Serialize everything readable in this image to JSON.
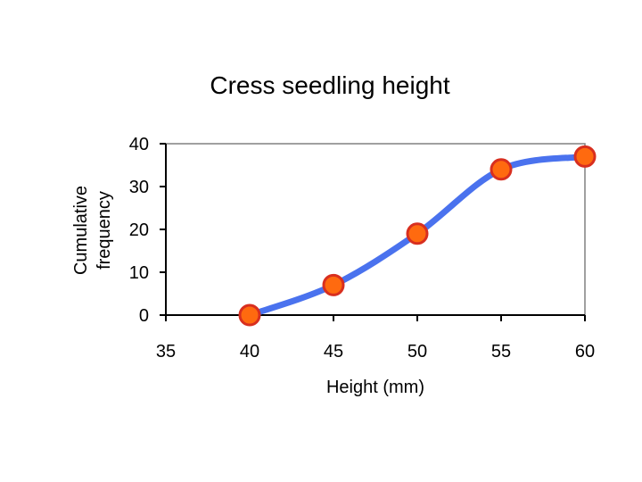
{
  "chart_data": {
    "type": "line",
    "title": "Cress seedling height",
    "xlabel": "Height (mm)",
    "ylabel_lines": [
      "Cumulative",
      "frequency"
    ],
    "x_ticks": [
      35,
      40,
      45,
      50,
      55,
      60
    ],
    "y_ticks": [
      0,
      10,
      20,
      30,
      40
    ],
    "xlim": [
      35,
      60
    ],
    "ylim": [
      0,
      40
    ],
    "smooth": true,
    "grid": false,
    "legend": "none",
    "series": [
      {
        "x": [
          40,
          45,
          50,
          55,
          60
        ],
        "y": [
          0,
          7,
          19,
          34,
          37
        ]
      }
    ],
    "colors": {
      "line": "#4a72ee",
      "marker_fill": "#ff6a0f",
      "marker_edge": "#d82f1f",
      "axis": "#000000",
      "plot_border": "#808080"
    }
  }
}
